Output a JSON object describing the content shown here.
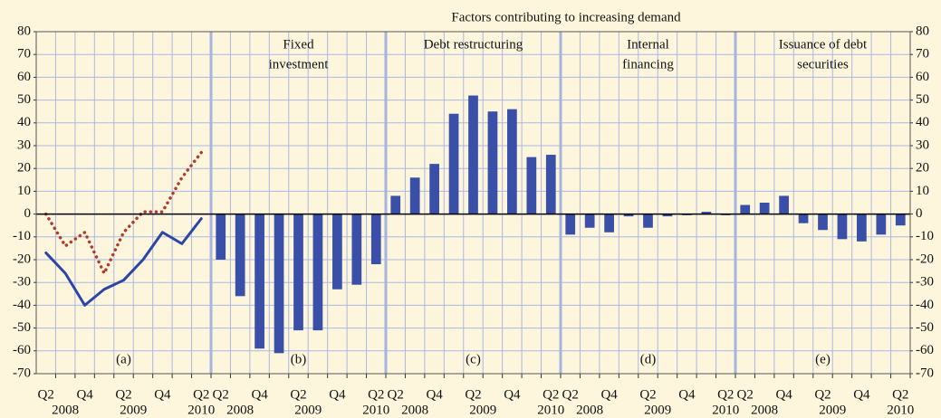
{
  "chart_data": {
    "type": "panels",
    "title": "Factors contributing to increasing demand",
    "ylim": [
      -70,
      80
    ],
    "yticks": [
      80,
      70,
      60,
      50,
      40,
      30,
      20,
      10,
      0,
      -10,
      -20,
      -30,
      -40,
      -50,
      -60,
      -70
    ],
    "grid": true,
    "panels": [
      {
        "type": "line",
        "label": "(a)",
        "categories": [
          "Q2",
          null,
          "Q4",
          null,
          "Q2",
          null,
          "Q4",
          null,
          "Q2"
        ],
        "years": [
          "2008",
          "2009",
          "2010"
        ],
        "series": [
          {
            "color": "#2e45a6",
            "style": "solid",
            "values": [
              -17,
              -26,
              -40,
              -33,
              -29,
              -20,
              -8,
              -13,
              -2
            ]
          },
          {
            "color": "#b03a2e",
            "style": "dotted",
            "values": [
              0,
              -14,
              -8,
              -26,
              -8,
              1,
              1,
              16,
              27
            ]
          }
        ]
      },
      {
        "type": "bar",
        "title": [
          "Fixed",
          "investment"
        ],
        "label": "(b)",
        "color": "#3a4fa8",
        "categories": [
          "Q2",
          null,
          "Q4",
          null,
          "Q2",
          null,
          "Q4",
          null,
          "Q2"
        ],
        "years": [
          "2008",
          "2009",
          "2010"
        ],
        "values": [
          -20,
          -36,
          -59,
          -61,
          -51,
          -51,
          -33,
          -31,
          -22
        ]
      },
      {
        "type": "bar",
        "title": [
          "Debt restructuring"
        ],
        "label": "(c)",
        "color": "#3a4fa8",
        "categories": [
          "Q2",
          null,
          "Q4",
          null,
          "Q2",
          null,
          "Q4",
          null,
          "Q2"
        ],
        "years": [
          "2008",
          "2009",
          "2010"
        ],
        "values": [
          8,
          16,
          22,
          44,
          52,
          45,
          46,
          25,
          26
        ]
      },
      {
        "type": "bar",
        "title": [
          "Internal",
          "financing"
        ],
        "label": "(d)",
        "color": "#3a4fa8",
        "categories": [
          "Q2",
          null,
          "Q4",
          null,
          "Q2",
          null,
          "Q4",
          null,
          "Q2"
        ],
        "years": [
          "2008",
          "2009",
          "2010"
        ],
        "values": [
          -9,
          -6,
          -8,
          -1,
          -6,
          -1,
          -0.5,
          1,
          -0.5
        ]
      },
      {
        "type": "bar",
        "title": [
          "Issuance of debt",
          "securities"
        ],
        "label": "(e)",
        "color": "#3a4fa8",
        "categories": [
          "Q2",
          null,
          "Q4",
          null,
          "Q2",
          null,
          "Q4",
          null,
          "Q2"
        ],
        "years": [
          "2008",
          "2009",
          "2010"
        ],
        "values": [
          4,
          5,
          8,
          -4,
          -7,
          -11,
          -12,
          -9,
          -5
        ]
      }
    ]
  }
}
